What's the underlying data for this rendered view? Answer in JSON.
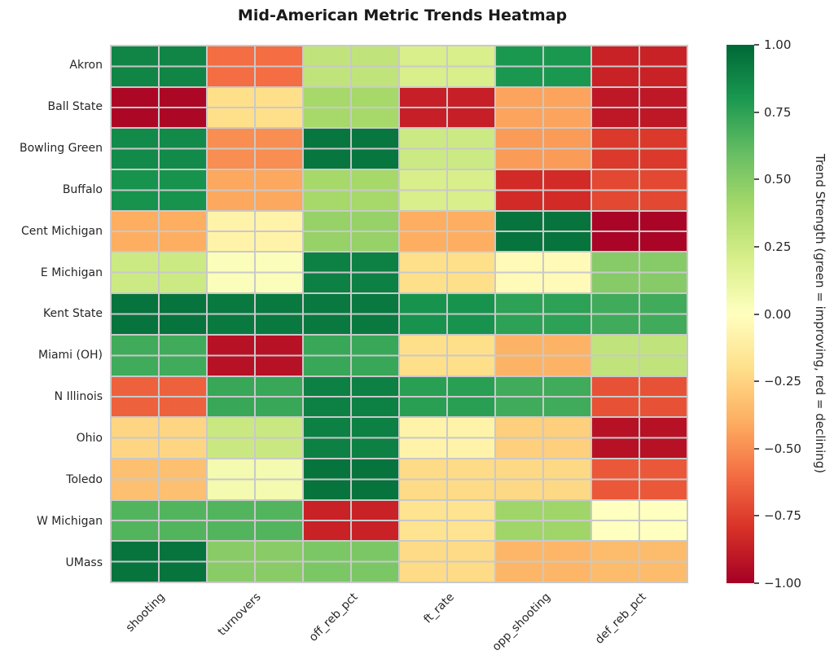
{
  "title": "Mid-American Metric Trends Heatmap",
  "colors": {
    "background": "#ffffff",
    "grid_line": "#c9c9c9",
    "text": "#262626",
    "title_text": "#1a1a1a",
    "colormap_stops": [
      "#a50026",
      "#d73027",
      "#f46d43",
      "#fdae61",
      "#fee08b",
      "#ffffbf",
      "#d9ef8b",
      "#a6d96a",
      "#66bd63",
      "#1a9850",
      "#006837"
    ]
  },
  "chart_data": {
    "type": "heatmap",
    "title": "Mid-American Metric Trends Heatmap",
    "colormap": "RdYlGn",
    "vmin": -1,
    "vmax": 1,
    "grid": true,
    "x_categories": [
      "shooting",
      "turnovers",
      "off_reb_pct",
      "ft_rate",
      "opp_shooting",
      "def_reb_pct"
    ],
    "y_categories": [
      "Akron",
      "Ball State",
      "Bowling Green",
      "Buffalo",
      "Cent Michigan",
      "E Michigan",
      "Kent State",
      "Miami (OH)",
      "N Illinois",
      "Ohio",
      "Toledo",
      "W Michigan",
      "UMass"
    ],
    "values": [
      [
        0.88,
        -0.6,
        0.3,
        0.2,
        0.8,
        -0.86
      ],
      [
        -0.97,
        -0.2,
        0.4,
        -0.87,
        -0.43,
        -0.9
      ],
      [
        0.86,
        -0.5,
        0.94,
        0.25,
        -0.46,
        -0.77
      ],
      [
        0.82,
        -0.42,
        0.4,
        0.2,
        -0.82,
        -0.72
      ],
      [
        -0.4,
        -0.08,
        0.45,
        -0.4,
        0.95,
        -0.98
      ],
      [
        0.25,
        0.02,
        0.9,
        -0.2,
        -0.03,
        0.5
      ],
      [
        0.95,
        0.93,
        0.93,
        0.82,
        0.75,
        0.7
      ],
      [
        0.7,
        -0.93,
        0.72,
        -0.2,
        -0.38,
        0.3
      ],
      [
        -0.64,
        0.72,
        0.9,
        0.76,
        0.7,
        -0.69
      ],
      [
        -0.24,
        0.26,
        0.9,
        -0.08,
        -0.27,
        -0.93
      ],
      [
        -0.33,
        0.06,
        0.95,
        -0.22,
        -0.23,
        -0.67
      ],
      [
        0.65,
        0.65,
        -0.86,
        -0.18,
        0.42,
        0.0
      ],
      [
        0.95,
        0.49,
        0.53,
        -0.22,
        -0.37,
        -0.35
      ]
    ],
    "colorbar": {
      "label": "Trend Strength (green = improving, red = declining)",
      "ticks": [
        1.0,
        0.75,
        0.5,
        0.25,
        0.0,
        -0.25,
        -0.5,
        -0.75,
        -1.0
      ],
      "tick_labels": [
        "1.00",
        "0.75",
        "0.50",
        "0.25",
        "0.00",
        "−0.25",
        "−0.50",
        "−0.75",
        "−1.00"
      ],
      "legend_position": "right"
    }
  }
}
